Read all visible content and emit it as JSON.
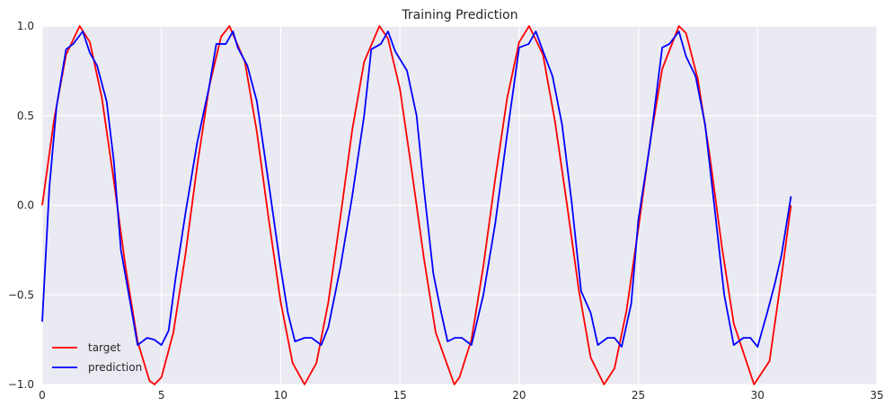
{
  "chart_data": {
    "type": "line",
    "title": "Training Prediction",
    "xlabel": "",
    "ylabel": "",
    "xlim": [
      0,
      35
    ],
    "ylim": [
      -1.0,
      1.0
    ],
    "xticks": [
      0,
      5,
      10,
      15,
      20,
      25,
      30,
      35
    ],
    "yticks": [
      -1.0,
      -0.5,
      0.0,
      0.5,
      1.0
    ],
    "xtick_labels": [
      "0",
      "5",
      "10",
      "15",
      "20",
      "25",
      "30",
      "35"
    ],
    "ytick_labels": [
      "−1.0",
      "−0.5",
      "0.0",
      "0.5",
      "1.0"
    ],
    "grid": true,
    "legend_position": "lower-left",
    "background_color": "#eaeaf2",
    "series": [
      {
        "name": "target",
        "color": "#ff0000",
        "x": [
          0,
          0.5,
          1.0,
          1.57,
          2.0,
          2.5,
          3.0,
          3.5,
          4.0,
          4.5,
          4.71,
          5.0,
          5.5,
          6.0,
          6.5,
          7.0,
          7.5,
          7.85,
          8.5,
          9.0,
          9.5,
          10.0,
          10.5,
          11.0,
          11.0,
          11.5,
          12.0,
          12.5,
          13.0,
          13.5,
          14.14,
          14.5,
          15.0,
          15.5,
          16.0,
          16.5,
          17.28,
          17.5,
          18.0,
          18.5,
          19.0,
          19.5,
          20.0,
          20.42,
          21.0,
          21.5,
          22.0,
          22.5,
          23.0,
          23.56,
          24.0,
          24.5,
          25.0,
          25.5,
          26.0,
          26.7,
          27.0,
          27.5,
          28.0,
          28.5,
          29.0,
          29.85,
          30.5,
          31.0,
          31.4
        ],
        "y": [
          0.0,
          0.48,
          0.84,
          1.0,
          0.91,
          0.6,
          0.14,
          -0.35,
          -0.76,
          -0.98,
          -1.0,
          -0.96,
          -0.71,
          -0.28,
          0.22,
          0.66,
          0.94,
          1.0,
          0.8,
          0.41,
          -0.08,
          -0.54,
          -0.88,
          -1.0,
          -1.0,
          -0.88,
          -0.54,
          -0.07,
          0.42,
          0.8,
          1.0,
          0.93,
          0.65,
          0.19,
          -0.29,
          -0.71,
          -1.0,
          -0.96,
          -0.75,
          -0.34,
          0.15,
          0.6,
          0.91,
          1.0,
          0.84,
          0.47,
          0.01,
          -0.47,
          -0.85,
          -1.0,
          -0.91,
          -0.59,
          -0.13,
          0.36,
          0.76,
          1.0,
          0.96,
          0.7,
          0.27,
          -0.23,
          -0.66,
          -1.0,
          -0.87,
          -0.4,
          0.0
        ]
      },
      {
        "name": "prediction",
        "color": "#0000ff",
        "x": [
          0,
          0.3,
          0.6,
          1.0,
          1.3,
          1.7,
          2.0,
          2.3,
          2.7,
          3.0,
          3.3,
          3.7,
          4.0,
          4.4,
          4.7,
          5.0,
          5.3,
          5.6,
          6.0,
          6.5,
          7.0,
          7.3,
          7.7,
          8.0,
          8.2,
          8.6,
          9.0,
          9.5,
          10.0,
          10.3,
          10.6,
          11.0,
          11.3,
          11.7,
          12.0,
          12.5,
          13.0,
          13.5,
          13.8,
          14.2,
          14.5,
          14.8,
          15.3,
          15.7,
          16.0,
          16.4,
          16.7,
          17.0,
          17.3,
          17.6,
          18.0,
          18.5,
          19.0,
          19.5,
          20.0,
          20.4,
          20.7,
          21.0,
          21.4,
          21.8,
          22.2,
          22.6,
          23.0,
          23.3,
          23.7,
          24.0,
          24.3,
          24.7,
          25.0,
          25.5,
          26.0,
          26.3,
          26.7,
          27.0,
          27.4,
          27.8,
          28.2,
          28.6,
          29.0,
          29.4,
          29.7,
          30.0,
          30.4,
          30.7,
          31.0,
          31.4
        ],
        "y": [
          -0.65,
          0.1,
          0.55,
          0.87,
          0.9,
          0.97,
          0.85,
          0.78,
          0.58,
          0.25,
          -0.25,
          -0.55,
          -0.78,
          -0.74,
          -0.75,
          -0.78,
          -0.7,
          -0.4,
          -0.05,
          0.35,
          0.66,
          0.9,
          0.9,
          0.97,
          0.88,
          0.78,
          0.58,
          0.12,
          -0.35,
          -0.6,
          -0.76,
          -0.74,
          -0.74,
          -0.78,
          -0.68,
          -0.35,
          0.05,
          0.5,
          0.87,
          0.9,
          0.97,
          0.86,
          0.75,
          0.5,
          0.1,
          -0.38,
          -0.58,
          -0.76,
          -0.74,
          -0.74,
          -0.78,
          -0.5,
          -0.1,
          0.4,
          0.88,
          0.9,
          0.97,
          0.86,
          0.72,
          0.45,
          0.02,
          -0.48,
          -0.6,
          -0.78,
          -0.74,
          -0.74,
          -0.79,
          -0.55,
          -0.08,
          0.35,
          0.88,
          0.9,
          0.97,
          0.83,
          0.72,
          0.45,
          -0.02,
          -0.5,
          -0.78,
          -0.74,
          -0.74,
          -0.79,
          -0.6,
          -0.45,
          -0.28,
          0.05
        ]
      }
    ]
  }
}
